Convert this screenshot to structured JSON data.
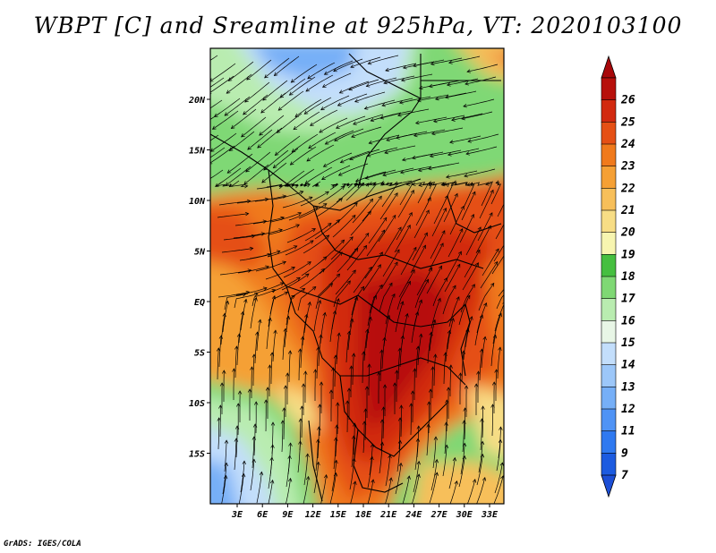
{
  "title": "WBPT [C] and Sreamline at 925hPa, VT: 2020103100",
  "footer": "GrADS: IGES/COLA",
  "map": {
    "lon_labels": [
      "3E",
      "6E",
      "9E",
      "12E",
      "15E",
      "18E",
      "21E",
      "24E",
      "27E",
      "30E",
      "33E"
    ],
    "lat_labels": [
      "20N",
      "15N",
      "10N",
      "5N",
      "EQ",
      "5S",
      "10S",
      "15S"
    ]
  },
  "colorbar": {
    "levels": [
      "7",
      "9",
      "11",
      "12",
      "13",
      "14",
      "15",
      "16",
      "17",
      "18",
      "19",
      "20",
      "21",
      "22",
      "23",
      "24",
      "25",
      "26"
    ],
    "colors": [
      "#1c5be0",
      "#2f79f0",
      "#4f93f5",
      "#76aff7",
      "#9cc7f9",
      "#c3defb",
      "#e8f6e6",
      "#b9ecb0",
      "#7fd874",
      "#46bf40",
      "#f7f5b0",
      "#f7dd85",
      "#f7bf5a",
      "#f5a035",
      "#f07a1c",
      "#e55015",
      "#d22a10",
      "#b7100b"
    ],
    "min_color": "#1c4fd6",
    "max_color": "#a8080a"
  },
  "legend_colors": {
    "boundary": "#000000",
    "streamline": "#000000"
  }
}
